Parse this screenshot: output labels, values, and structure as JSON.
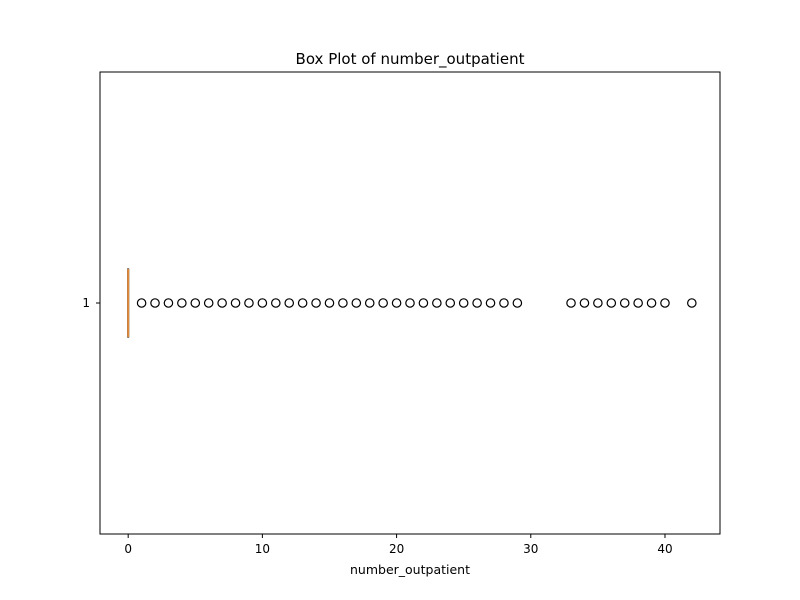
{
  "chart_data": {
    "type": "boxplot",
    "orientation": "horizontal",
    "title": "Box Plot of number_outpatient",
    "xlabel": "number_outpatient",
    "ylabel": "",
    "xlim": [
      -2.1,
      44.1
    ],
    "x_ticks": [
      0,
      10,
      20,
      30,
      40
    ],
    "y_ticks": [
      "1"
    ],
    "grid": false,
    "series": [
      {
        "category": "1",
        "whisker_low": 0,
        "q1": 0,
        "median": 0,
        "q3": 0,
        "whisker_high": 0,
        "outliers": [
          1,
          2,
          3,
          4,
          5,
          6,
          7,
          8,
          9,
          10,
          11,
          12,
          13,
          14,
          15,
          16,
          17,
          18,
          19,
          20,
          21,
          22,
          23,
          24,
          25,
          26,
          27,
          28,
          29,
          33,
          34,
          35,
          36,
          37,
          38,
          39,
          40,
          42
        ]
      }
    ],
    "colors": {
      "median": "#e08a3c",
      "box": "#000000",
      "outlier_edge": "#000000"
    }
  }
}
